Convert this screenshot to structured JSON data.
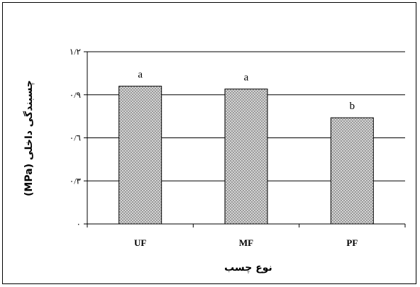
{
  "chart_data": {
    "type": "bar",
    "categories": [
      "UF",
      "MF",
      "PF"
    ],
    "values": [
      0.96,
      0.94,
      0.74
    ],
    "data_labels": [
      "a",
      "a",
      "b"
    ],
    "ylim": [
      0,
      1.2
    ],
    "yticks": [
      0,
      0.3,
      0.6,
      0.9,
      1.2
    ],
    "ytick_labels": [
      "٠",
      "٠/٣",
      "٠/٦",
      "٠/٩",
      "١/٢"
    ],
    "xlabel": "نوع چسب",
    "ylabel": "چسبندگی داخلی (MPa)",
    "grid": true,
    "bar_color": "#8c8c8c"
  }
}
